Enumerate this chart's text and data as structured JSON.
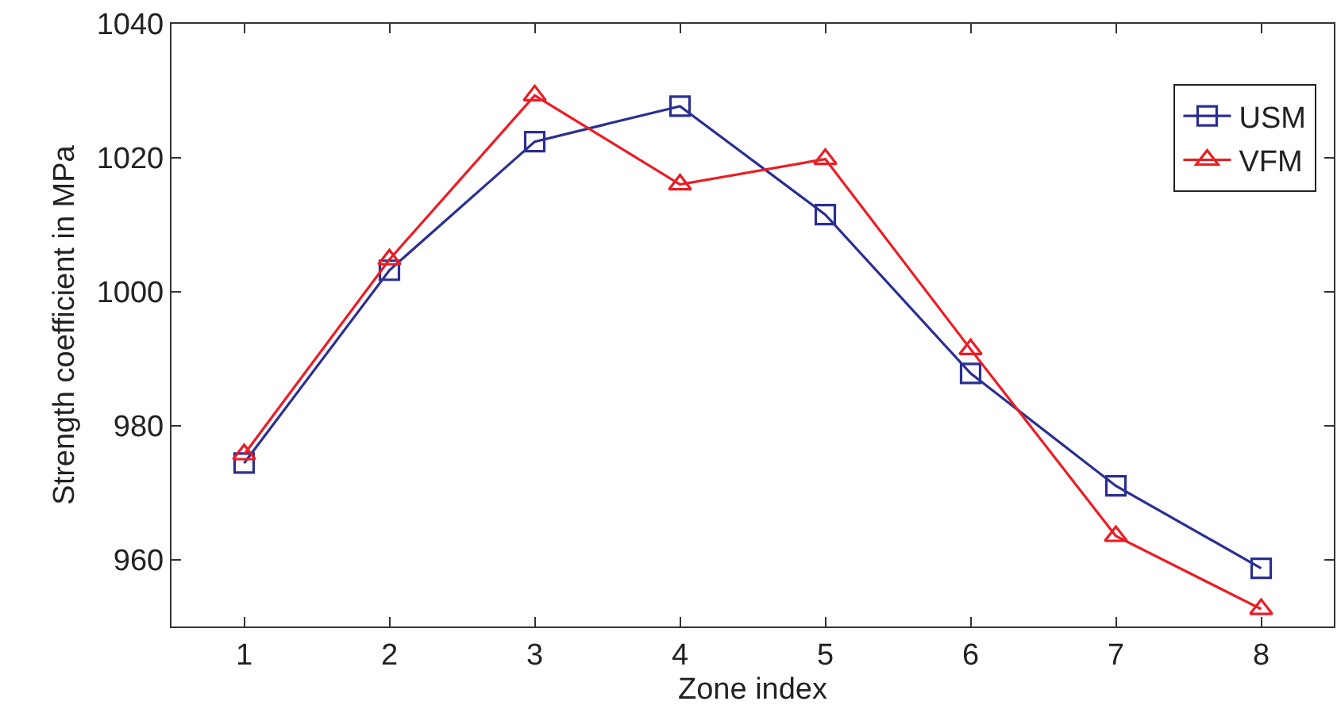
{
  "chart_data": {
    "type": "line",
    "xlabel": "Zone index",
    "ylabel": "Strength coefficient in MPa",
    "x": [
      1,
      2,
      3,
      4,
      5,
      6,
      7,
      8
    ],
    "series": [
      {
        "name": "USM",
        "color": "#2b2f93",
        "marker": "square",
        "values": [
          974.4,
          1003.2,
          1022.4,
          1027.7,
          1011.5,
          987.8,
          971.0,
          958.7
        ]
      },
      {
        "name": "VFM",
        "color": "#ec1c24",
        "marker": "triangle",
        "values": [
          975.7,
          1004.8,
          1029.3,
          1016.0,
          1019.8,
          991.4,
          963.5,
          952.6
        ]
      }
    ],
    "xlim": [
      0.5,
      8.5
    ],
    "xticks": [
      1,
      2,
      3,
      4,
      5,
      6,
      7,
      8
    ],
    "ylim": [
      950,
      1040
    ],
    "yticks": [
      960,
      980,
      1000,
      1020,
      1040
    ],
    "legend": "top right",
    "line_style": "solid"
  }
}
